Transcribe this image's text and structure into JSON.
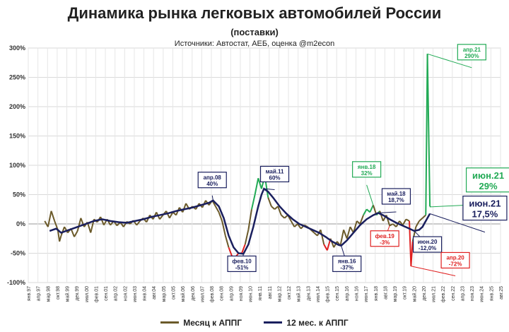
{
  "chart_data": {
    "type": "line",
    "title": "Динамика рынка легковых автомобилей России",
    "subtitle": "(поставки)",
    "source": "Источники: Автостат, АЕБ, оценка @m2econ",
    "ylim": [
      -100,
      300
    ],
    "yticks": [
      -100,
      -50,
      0,
      50,
      100,
      150,
      200,
      250,
      300
    ],
    "ytick_labels": [
      "-100%",
      "-50%",
      "0%",
      "50%",
      "100%",
      "150%",
      "200%",
      "250%",
      "300%"
    ],
    "xticks": [
      "янв.97",
      "апр.97",
      "мар.98",
      "окт.98",
      "май.99",
      "дек.99",
      "июл.00",
      "фев.01",
      "сен.01",
      "апр.02",
      "ноя.02",
      "июн.03",
      "янв.04",
      "авг.04",
      "мар.05",
      "окт.05",
      "май.06",
      "дек.06",
      "июл.07",
      "фев.08",
      "сен.08",
      "апр.09",
      "ноя.09",
      "июн.10",
      "янв.11",
      "авг.11",
      "мар.12",
      "окт.12",
      "май.13",
      "дек.13",
      "июл.14",
      "фев.15",
      "сен.15",
      "апр.16",
      "ноя.16",
      "июн.17",
      "янв.18",
      "авг.18",
      "мар.19",
      "окт.19",
      "май.20",
      "дек.20",
      "июл.21",
      "фев.22",
      "сен.22",
      "апр.23",
      "ноя.23",
      "июн.24",
      "янв.25",
      "авг.25"
    ],
    "x_start": 1997.0,
    "x_end": 2025.75,
    "grid": true,
    "legend_position": "bottom",
    "series": [
      {
        "name": "Месяц к АППГ",
        "color": "#6b5a2a",
        "points": [
          [
            1998.0,
            5
          ],
          [
            1998.2,
            -5
          ],
          [
            1998.4,
            22
          ],
          [
            1998.6,
            5
          ],
          [
            1998.8,
            -10
          ],
          [
            1998.9,
            -30
          ],
          [
            1999.0,
            -20
          ],
          [
            1999.2,
            -5
          ],
          [
            1999.4,
            -15
          ],
          [
            1999.6,
            -8
          ],
          [
            1999.8,
            -22
          ],
          [
            2000.0,
            -12
          ],
          [
            2000.2,
            10
          ],
          [
            2000.4,
            -5
          ],
          [
            2000.6,
            3
          ],
          [
            2000.8,
            -15
          ],
          [
            2001.0,
            8
          ],
          [
            2001.2,
            3
          ],
          [
            2001.4,
            12
          ],
          [
            2001.6,
            -2
          ],
          [
            2001.8,
            8
          ],
          [
            2002.0,
            -2
          ],
          [
            2002.2,
            5
          ],
          [
            2002.4,
            -3
          ],
          [
            2002.6,
            3
          ],
          [
            2002.8,
            -5
          ],
          [
            2003.0,
            4
          ],
          [
            2003.2,
            0
          ],
          [
            2003.4,
            6
          ],
          [
            2003.6,
            -2
          ],
          [
            2003.8,
            5
          ],
          [
            2004.0,
            10
          ],
          [
            2004.2,
            3
          ],
          [
            2004.4,
            15
          ],
          [
            2004.6,
            8
          ],
          [
            2004.8,
            20
          ],
          [
            2005.0,
            8
          ],
          [
            2005.2,
            15
          ],
          [
            2005.4,
            22
          ],
          [
            2005.6,
            10
          ],
          [
            2005.8,
            20
          ],
          [
            2006.0,
            15
          ],
          [
            2006.2,
            28
          ],
          [
            2006.4,
            20
          ],
          [
            2006.6,
            35
          ],
          [
            2006.8,
            25
          ],
          [
            2007.0,
            30
          ],
          [
            2007.2,
            25
          ],
          [
            2007.4,
            35
          ],
          [
            2007.6,
            28
          ],
          [
            2007.8,
            40
          ],
          [
            2008.0,
            32
          ],
          [
            2008.2,
            40
          ],
          [
            2008.4,
            30
          ],
          [
            2008.6,
            20
          ],
          [
            2008.8,
            5
          ],
          [
            2009.0,
            -20
          ],
          [
            2009.2,
            -40
          ],
          [
            2009.4,
            -55
          ],
          [
            2009.6,
            -57
          ],
          [
            2009.8,
            -50
          ],
          [
            2010.0,
            -50
          ],
          [
            2010.2,
            -35
          ],
          [
            2010.4,
            -10
          ],
          [
            2010.6,
            25
          ],
          [
            2010.8,
            50
          ],
          [
            2011.0,
            78
          ],
          [
            2011.2,
            60
          ],
          [
            2011.4,
            82
          ],
          [
            2011.6,
            45
          ],
          [
            2011.8,
            30
          ],
          [
            2012.0,
            25
          ],
          [
            2012.2,
            30
          ],
          [
            2012.4,
            15
          ],
          [
            2012.6,
            10
          ],
          [
            2012.8,
            15
          ],
          [
            2013.0,
            5
          ],
          [
            2013.2,
            -5
          ],
          [
            2013.4,
            0
          ],
          [
            2013.6,
            -8
          ],
          [
            2013.8,
            -2
          ],
          [
            2014.0,
            -5
          ],
          [
            2014.2,
            -10
          ],
          [
            2014.4,
            -15
          ],
          [
            2014.6,
            -20
          ],
          [
            2014.8,
            -10
          ],
          [
            2015.0,
            -35
          ],
          [
            2015.2,
            -45
          ],
          [
            2015.4,
            -25
          ],
          [
            2015.6,
            -40
          ],
          [
            2015.8,
            -30
          ],
          [
            2016.0,
            -37
          ],
          [
            2016.2,
            -10
          ],
          [
            2016.4,
            -25
          ],
          [
            2016.6,
            -5
          ],
          [
            2016.8,
            -15
          ],
          [
            2017.0,
            5
          ],
          [
            2017.2,
            0
          ],
          [
            2017.4,
            15
          ],
          [
            2017.6,
            25
          ],
          [
            2017.8,
            20
          ],
          [
            2018.0,
            32
          ],
          [
            2018.2,
            15
          ],
          [
            2018.4,
            22
          ],
          [
            2018.6,
            5
          ],
          [
            2018.8,
            15
          ],
          [
            2019.0,
            -3
          ],
          [
            2019.2,
            0
          ],
          [
            2019.4,
            -5
          ],
          [
            2019.6,
            5
          ],
          [
            2019.8,
            -2
          ],
          [
            2020.0,
            8
          ],
          [
            2020.2,
            5
          ],
          [
            2020.3,
            -72
          ],
          [
            2020.4,
            -30
          ],
          [
            2020.6,
            -5
          ],
          [
            2020.8,
            5
          ],
          [
            2021.0,
            10
          ],
          [
            2021.2,
            15
          ],
          [
            2021.3,
            290
          ],
          [
            2021.45,
            30
          ],
          [
            2021.5,
            29
          ]
        ]
      },
      {
        "name": "12 мес. к АППГ",
        "color": "#1a1f5e",
        "points": [
          [
            1998.3,
            -12
          ],
          [
            1998.7,
            -8
          ],
          [
            1999.0,
            -15
          ],
          [
            1999.5,
            -10
          ],
          [
            2000.0,
            -5
          ],
          [
            2000.5,
            0
          ],
          [
            2001.0,
            5
          ],
          [
            2001.5,
            8
          ],
          [
            2002.0,
            5
          ],
          [
            2002.5,
            3
          ],
          [
            2003.0,
            2
          ],
          [
            2003.5,
            5
          ],
          [
            2004.0,
            8
          ],
          [
            2004.5,
            12
          ],
          [
            2005.0,
            15
          ],
          [
            2005.5,
            18
          ],
          [
            2006.0,
            22
          ],
          [
            2006.5,
            25
          ],
          [
            2007.0,
            28
          ],
          [
            2007.5,
            32
          ],
          [
            2008.0,
            36
          ],
          [
            2008.25,
            40
          ],
          [
            2008.6,
            30
          ],
          [
            2008.9,
            10
          ],
          [
            2009.2,
            -20
          ],
          [
            2009.5,
            -40
          ],
          [
            2009.8,
            -50
          ],
          [
            2010.1,
            -51
          ],
          [
            2010.4,
            -35
          ],
          [
            2010.7,
            -5
          ],
          [
            2011.0,
            30
          ],
          [
            2011.2,
            50
          ],
          [
            2011.35,
            60
          ],
          [
            2011.6,
            55
          ],
          [
            2011.9,
            45
          ],
          [
            2012.3,
            30
          ],
          [
            2012.7,
            18
          ],
          [
            2013.1,
            8
          ],
          [
            2013.5,
            0
          ],
          [
            2013.9,
            -5
          ],
          [
            2014.3,
            -10
          ],
          [
            2014.7,
            -15
          ],
          [
            2015.1,
            -22
          ],
          [
            2015.5,
            -30
          ],
          [
            2015.9,
            -36
          ],
          [
            2016.05,
            -37
          ],
          [
            2016.4,
            -28
          ],
          [
            2016.8,
            -15
          ],
          [
            2017.2,
            -2
          ],
          [
            2017.6,
            8
          ],
          [
            2018.0,
            15
          ],
          [
            2018.3,
            18.7
          ],
          [
            2018.6,
            15
          ],
          [
            2019.0,
            8
          ],
          [
            2019.4,
            2
          ],
          [
            2019.8,
            -3
          ],
          [
            2020.2,
            -8
          ],
          [
            2020.5,
            -12
          ],
          [
            2020.8,
            -10
          ],
          [
            2021.0,
            -5
          ],
          [
            2021.2,
            5
          ],
          [
            2021.45,
            17.5
          ]
        ]
      }
    ],
    "annotations": [
      {
        "label": "апр.08",
        "value": "40%",
        "x": 2008.25,
        "y": 40,
        "color": "#1a1f5e"
      },
      {
        "label": "май.11",
        "value": "60%",
        "x": 2011.35,
        "y": 60,
        "color": "#1a1f5e"
      },
      {
        "label": "янв.18",
        "value": "32%",
        "x": 2018.0,
        "y": 32,
        "color": "#22aa55"
      },
      {
        "label": "май.18",
        "value": "18,7%",
        "x": 2018.3,
        "y": 18.7,
        "color": "#1a1f5e"
      },
      {
        "label": "фев.19",
        "value": "-3%",
        "x": 2019.0,
        "y": -3,
        "color": "#e02020"
      },
      {
        "label": "фев.10",
        "value": "-51%",
        "x": 2010.1,
        "y": -51,
        "color": "#1a1f5e"
      },
      {
        "label": "янв.16",
        "value": "-37%",
        "x": 2016.05,
        "y": -37,
        "color": "#1a1f5e"
      },
      {
        "label": "июн.20",
        "value": "-12,0%",
        "x": 2020.5,
        "y": -12,
        "color": "#1a1f5e"
      },
      {
        "label": "апр.20",
        "value": "-72%",
        "x": 2020.3,
        "y": -72,
        "color": "#e02020"
      },
      {
        "label": "апр.21",
        "value": "290%",
        "x": 2021.3,
        "y": 290,
        "color": "#22aa55"
      },
      {
        "label": "июн.21",
        "value": "29%",
        "x": 2021.5,
        "y": 29,
        "color": "#22aa55"
      },
      {
        "label": "июн.21",
        "value": "17,5%",
        "x": 2021.45,
        "y": 17.5,
        "color": "#1a1f5e"
      }
    ]
  }
}
